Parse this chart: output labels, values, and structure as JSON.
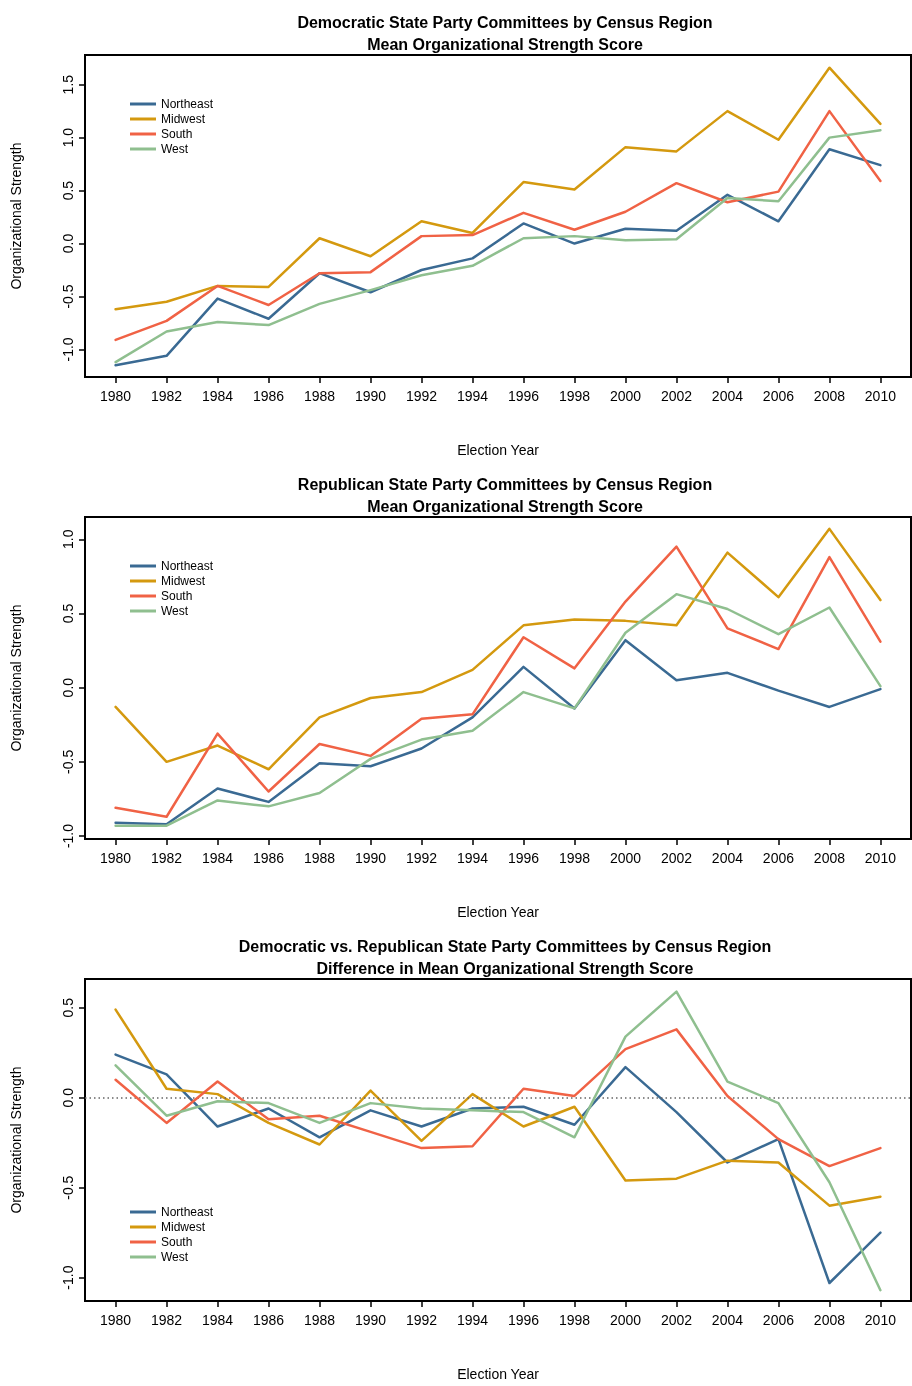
{
  "chart_data": [
    {
      "type": "line",
      "title": "Democratic State Party Committees by Census Region\nMean Organizational Strength Score",
      "xlabel": "Election Year",
      "ylabel": "Organizational Strength",
      "x": [
        1980,
        1982,
        1984,
        1986,
        1988,
        1990,
        1992,
        1994,
        1996,
        1998,
        2000,
        2002,
        2004,
        2006,
        2008,
        2010
      ],
      "xlim": [
        1978.8,
        2011.2
      ],
      "xticks": [
        1980,
        1982,
        1984,
        1986,
        1988,
        1990,
        1992,
        1994,
        1996,
        1998,
        2000,
        2002,
        2004,
        2006,
        2008,
        2010
      ],
      "ylim": [
        -1.26,
        1.78
      ],
      "yticks": [
        {
          "value": -1,
          "label": "-1.0"
        },
        {
          "value": -0.5,
          "label": "-0.5"
        },
        {
          "value": 0,
          "label": "0.0"
        },
        {
          "value": 0.5,
          "label": "0.5"
        },
        {
          "value": 1,
          "label": "1.0"
        },
        {
          "value": 1.5,
          "label": "1.5"
        }
      ],
      "legend": "top left",
      "grid": false,
      "marker": "none",
      "line_style": "solid",
      "series": [
        {
          "name": "Northeast",
          "color": "#3a6a93",
          "values": [
            -1.15,
            -1.06,
            -0.52,
            -0.71,
            -0.28,
            -0.46,
            -0.25,
            -0.14,
            0.19,
            0.0,
            0.14,
            0.12,
            0.46,
            0.21,
            0.89,
            0.74
          ]
        },
        {
          "name": "Midwest",
          "color": "#d4990f",
          "values": [
            -0.62,
            -0.55,
            -0.4,
            -0.41,
            0.05,
            -0.12,
            0.21,
            0.1,
            0.58,
            0.51,
            0.91,
            0.87,
            1.25,
            0.98,
            1.66,
            1.13
          ]
        },
        {
          "name": "South",
          "color": "#f06245",
          "values": [
            -0.91,
            -0.73,
            -0.4,
            -0.58,
            -0.28,
            -0.27,
            0.07,
            0.08,
            0.29,
            0.13,
            0.3,
            0.57,
            0.39,
            0.49,
            1.25,
            0.59
          ]
        },
        {
          "name": "West",
          "color": "#8fbf8f",
          "values": [
            -1.12,
            -0.83,
            -0.74,
            -0.77,
            -0.57,
            -0.44,
            -0.3,
            -0.21,
            0.05,
            0.07,
            0.03,
            0.04,
            0.43,
            0.4,
            1.0,
            1.07
          ]
        }
      ]
    },
    {
      "type": "line",
      "title": "Republican State Party Committees by Census Region\nMean Organizational Strength Score",
      "xlabel": "Election Year",
      "ylabel": "Organizational Strength",
      "x": [
        1980,
        1982,
        1984,
        1986,
        1988,
        1990,
        1992,
        1994,
        1996,
        1998,
        2000,
        2002,
        2004,
        2006,
        2008,
        2010
      ],
      "xlim": [
        1978.8,
        2011.2
      ],
      "xticks": [
        1980,
        1982,
        1984,
        1986,
        1988,
        1990,
        1992,
        1994,
        1996,
        1998,
        2000,
        2002,
        2004,
        2006,
        2008,
        2010
      ],
      "ylim": [
        -1.02,
        1.15
      ],
      "yticks": [
        {
          "value": -1,
          "label": "-1.0"
        },
        {
          "value": -0.5,
          "label": "-0.5"
        },
        {
          "value": 0,
          "label": "0.0"
        },
        {
          "value": 0.5,
          "label": "0.5"
        },
        {
          "value": 1,
          "label": "1.0"
        }
      ],
      "legend": "top left",
      "grid": false,
      "marker": "none",
      "line_style": "solid",
      "series": [
        {
          "name": "Northeast",
          "color": "#3a6a93",
          "values": [
            -0.91,
            -0.92,
            -0.68,
            -0.77,
            -0.51,
            -0.53,
            -0.41,
            -0.2,
            0.14,
            -0.14,
            0.32,
            0.05,
            0.1,
            -0.02,
            -0.13,
            -0.01
          ]
        },
        {
          "name": "Midwest",
          "color": "#d4990f",
          "values": [
            -0.13,
            -0.5,
            -0.39,
            -0.55,
            -0.2,
            -0.07,
            -0.03,
            0.12,
            0.42,
            0.46,
            0.45,
            0.42,
            0.91,
            0.61,
            1.07,
            0.59
          ]
        },
        {
          "name": "South",
          "color": "#f06245",
          "values": [
            -0.81,
            -0.87,
            -0.31,
            -0.7,
            -0.38,
            -0.46,
            -0.21,
            -0.18,
            0.34,
            0.13,
            0.58,
            0.95,
            0.4,
            0.26,
            0.88,
            0.31
          ]
        },
        {
          "name": "West",
          "color": "#8fbf8f",
          "values": [
            -0.93,
            -0.93,
            -0.76,
            -0.8,
            -0.71,
            -0.48,
            -0.35,
            -0.29,
            -0.03,
            -0.14,
            0.37,
            0.63,
            0.53,
            0.36,
            0.54,
            0.01
          ]
        }
      ]
    },
    {
      "type": "line",
      "title": "Democratic vs. Republican State Party Committees by Census Region\nDifference in Mean Organizational Strength Score",
      "xlabel": "Election Year",
      "ylabel": "Organizational Strength",
      "x": [
        1980,
        1982,
        1984,
        1986,
        1988,
        1990,
        1992,
        1994,
        1996,
        1998,
        2000,
        2002,
        2004,
        2006,
        2008,
        2010
      ],
      "xlim": [
        1978.8,
        2011.2
      ],
      "xticks": [
        1980,
        1982,
        1984,
        1986,
        1988,
        1990,
        1992,
        1994,
        1996,
        1998,
        2000,
        2002,
        2004,
        2006,
        2008,
        2010
      ],
      "ylim": [
        -1.13,
        0.66
      ],
      "yticks": [
        {
          "value": -1,
          "label": "-1.0"
        },
        {
          "value": -0.5,
          "label": "-0.5"
        },
        {
          "value": 0,
          "label": "0.0"
        },
        {
          "value": 0.5,
          "label": "0.5"
        }
      ],
      "legend": "bottom left",
      "grid": false,
      "marker": "none",
      "line_style": "solid",
      "ref_lines": [
        {
          "axis": "y",
          "value": 0,
          "color": "#666666",
          "line_style": "dotted"
        }
      ],
      "series": [
        {
          "name": "Northeast",
          "color": "#3a6a93",
          "values": [
            0.24,
            0.13,
            -0.16,
            -0.06,
            -0.22,
            -0.07,
            -0.16,
            -0.06,
            -0.05,
            -0.15,
            0.17,
            -0.08,
            -0.36,
            -0.23,
            -1.03,
            -0.75
          ]
        },
        {
          "name": "Midwest",
          "color": "#d4990f",
          "values": [
            0.49,
            0.05,
            0.02,
            -0.14,
            -0.26,
            0.04,
            -0.24,
            0.02,
            -0.16,
            -0.05,
            -0.46,
            -0.45,
            -0.35,
            -0.36,
            -0.6,
            -0.55
          ]
        },
        {
          "name": "South",
          "color": "#f06245",
          "values": [
            0.1,
            -0.14,
            0.09,
            -0.12,
            -0.1,
            -0.19,
            -0.28,
            -0.27,
            0.05,
            0.01,
            0.27,
            0.38,
            0.01,
            -0.23,
            -0.38,
            -0.28
          ]
        },
        {
          "name": "West",
          "color": "#8fbf8f",
          "values": [
            0.18,
            -0.1,
            -0.02,
            -0.03,
            -0.14,
            -0.03,
            -0.06,
            -0.07,
            -0.08,
            -0.22,
            0.34,
            0.59,
            0.09,
            -0.03,
            -0.47,
            -1.07
          ]
        }
      ]
    }
  ]
}
